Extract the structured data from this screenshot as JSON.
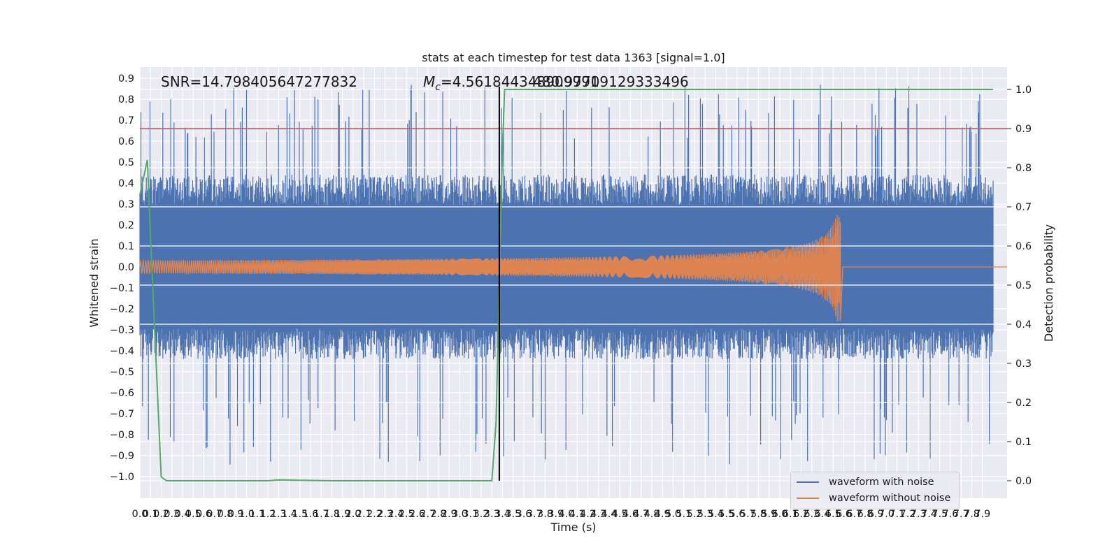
{
  "chart_data": {
    "type": "line",
    "title": "stats at each timestep for test data 1363 [signal=1.0]",
    "xlabel": "Time (s)",
    "ylabel": "Whitened strain",
    "y2label": "Detection probability",
    "xlim": [
      0.0,
      8.0
    ],
    "ylim": [
      -1.1,
      0.95
    ],
    "y2lim": [
      -0.05,
      1.03
    ],
    "x_ticks": [
      "0.0",
      "0.1",
      "0.2",
      "0.3",
      "0.4",
      "0.5",
      "0.6",
      "0.7",
      "0.8",
      "0.9",
      "1.0",
      "1.1",
      "1.2",
      "1.3",
      "1.4",
      "1.5",
      "1.6",
      "1.7",
      "1.8",
      "1.9",
      "2.0",
      "2.1",
      "2.2",
      "2.3",
      "2.4",
      "2.5",
      "2.6",
      "2.7",
      "2.8",
      "2.9",
      "3.0",
      "3.1",
      "3.2",
      "3.3",
      "3.4",
      "3.5",
      "3.6",
      "3.7",
      "3.8",
      "3.9",
      "4.0",
      "4.1",
      "4.2",
      "4.3",
      "4.4",
      "4.5",
      "4.6",
      "4.7",
      "4.8",
      "4.9",
      "5.0",
      "5.1",
      "5.2",
      "5.3",
      "5.4",
      "5.5",
      "5.6",
      "5.7",
      "5.8",
      "5.9",
      "6.0",
      "6.1",
      "6.2",
      "6.3",
      "6.4",
      "6.5",
      "6.6",
      "6.7",
      "6.8",
      "6.9",
      "7.0",
      "7.1",
      "7.2",
      "7.3",
      "7.4",
      "7.5",
      "7.6",
      "7.7",
      "7.8",
      "7.9"
    ],
    "y_ticks": [
      "0.9",
      "0.8",
      "0.7",
      "0.6",
      "0.5",
      "0.4",
      "0.3",
      "0.2",
      "0.1",
      "0.0",
      "-0.1",
      "-0.2",
      "-0.3",
      "-0.4",
      "-0.5",
      "-0.6",
      "-0.7",
      "-0.8",
      "-0.9",
      "-1.0"
    ],
    "y2_ticks": [
      "1.0",
      "0.9",
      "0.8",
      "0.7",
      "0.6",
      "0.5",
      "0.4",
      "0.3",
      "0.2",
      "0.1",
      "0.0"
    ],
    "annotations": {
      "snr": "SNR=14.798405647277832",
      "mc_symbol": "M",
      "mc_subscript": "c",
      "mc_value": "=4.561844348909991",
      "mc_overlap": "480.97709129333496"
    },
    "threshold_probability": 0.9,
    "merger_line_x": 3.37,
    "series": [
      {
        "name": "waveform with noise",
        "color": "#4c72b0",
        "noise_amplitude": 0.42,
        "spike_max": 0.87,
        "spike_min": -0.95
      },
      {
        "name": "waveform without noise",
        "color": "#dd8452",
        "start_amplitude": 0.03,
        "peak_amplitude": 0.26,
        "end_x": 6.57
      }
    ],
    "detection_probability": {
      "color": "#55a868",
      "x": [
        0.0,
        0.07,
        0.1,
        0.2,
        0.25,
        1.0,
        1.2,
        1.3,
        1.8,
        2.5,
        3.3,
        3.34,
        3.4,
        3.42,
        8.0
      ],
      "y": [
        0.73,
        0.82,
        0.62,
        0.01,
        0.0,
        0.0,
        0.0,
        0.002,
        0.0,
        0.0,
        0.0,
        0.15,
        0.85,
        1.0,
        1.0
      ]
    },
    "threshold_color": "#c44e52",
    "grid": true,
    "legend_position": "lower-right",
    "legend": [
      "waveform with noise",
      "waveform without noise"
    ]
  }
}
